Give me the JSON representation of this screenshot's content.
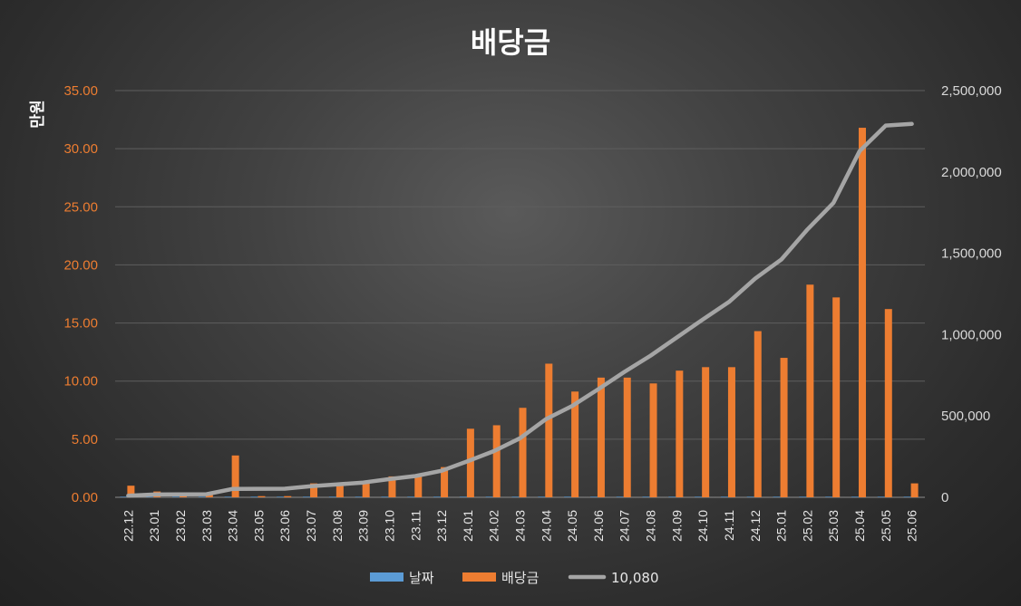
{
  "chart_data": {
    "type": "bar",
    "title": "배당금",
    "ylabel": "만원",
    "ylim": [
      0,
      35
    ],
    "y2lim": [
      0,
      2500000
    ],
    "left_ticks": [
      "0.00",
      "5.00",
      "10.00",
      "15.00",
      "20.00",
      "25.00",
      "30.00",
      "35.00"
    ],
    "right_ticks": [
      "0",
      "500,000",
      "1,000,000",
      "1,500,000",
      "2,000,000",
      "2,500,000"
    ],
    "grid": true,
    "legend_position": "bottom",
    "categories": [
      "22.12",
      "23.01",
      "23.02",
      "23.03",
      "23.04",
      "23.05",
      "23.06",
      "23.07",
      "23.08",
      "23.09",
      "23.10",
      "23.11",
      "23.12",
      "24.01",
      "24.02",
      "24.03",
      "24.04",
      "24.05",
      "24.06",
      "24.07",
      "24.08",
      "24.09",
      "24.10",
      "24.11",
      "24.12",
      "25.01",
      "25.02",
      "25.03",
      "25.04",
      "25.05",
      "25.06"
    ],
    "series": [
      {
        "name": "날짜",
        "type": "bar",
        "axis": "left",
        "color": "#5b9bd5",
        "values": [
          0.05,
          0.05,
          0.05,
          0.05,
          0.05,
          0.05,
          0.05,
          0.05,
          0.05,
          0.05,
          0.05,
          0.05,
          0.05,
          0.05,
          0.05,
          0.05,
          0.05,
          0.05,
          0.05,
          0.05,
          0.05,
          0.05,
          0.05,
          0.05,
          0.05,
          0.05,
          0.05,
          0.05,
          0.05,
          0.05,
          0.05
        ]
      },
      {
        "name": "배당금",
        "type": "bar",
        "axis": "left",
        "color": "#ed7d31",
        "values": [
          1.0,
          0.5,
          0.3,
          0.3,
          3.6,
          0.1,
          0.1,
          1.2,
          1.1,
          1.2,
          1.8,
          1.8,
          2.6,
          5.9,
          6.2,
          7.7,
          11.5,
          9.1,
          10.3,
          10.3,
          9.8,
          10.9,
          11.2,
          11.2,
          14.3,
          12.0,
          18.3,
          17.2,
          31.8,
          16.2,
          1.2
        ]
      },
      {
        "name": "10,080",
        "type": "line",
        "axis": "right",
        "color": "#a5a5a5",
        "values": [
          10080,
          17000,
          18000,
          19000,
          52000,
          52500,
          53000,
          68000,
          79000,
          91000,
          112000,
          131000,
          163000,
          222000,
          284000,
          363000,
          481000,
          562000,
          665000,
          771000,
          871000,
          982000,
          1093000,
          1201000,
          1344000,
          1461000,
          1646000,
          1810000,
          2128000,
          2285000,
          2295000
        ]
      }
    ]
  }
}
